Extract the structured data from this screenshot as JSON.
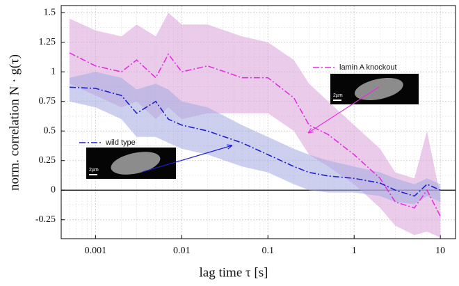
{
  "chart_data": {
    "type": "line",
    "ylabel": "norm. correlation N · g(τ)",
    "xlabel": "lag time τ [s]",
    "log_x": true,
    "grid": true,
    "x": [
      0.0005,
      0.001,
      0.002,
      0.003,
      0.005,
      0.007,
      0.01,
      0.02,
      0.05,
      0.1,
      0.2,
      0.3,
      0.5,
      1,
      2,
      3,
      5,
      7,
      10
    ],
    "series": [
      {
        "name": "lamin A knockout",
        "color": "#e62ee0",
        "band_color": "#d8a3d8",
        "values": [
          1.16,
          1.05,
          1.0,
          1.1,
          0.95,
          1.15,
          1.0,
          1.05,
          0.95,
          0.95,
          0.78,
          0.55,
          0.47,
          0.3,
          0.1,
          -0.1,
          -0.15,
          0.0,
          -0.22
        ],
        "band_high": [
          1.45,
          1.35,
          1.3,
          1.4,
          1.3,
          1.5,
          1.4,
          1.4,
          1.3,
          1.25,
          1.1,
          0.9,
          0.75,
          0.55,
          0.35,
          0.15,
          0.1,
          0.5,
          -0.05
        ],
        "band_low": [
          0.9,
          0.8,
          0.7,
          0.75,
          0.6,
          0.7,
          0.6,
          0.65,
          0.65,
          0.65,
          0.5,
          0.3,
          0.2,
          0.05,
          -0.15,
          -0.3,
          -0.38,
          -0.35,
          -0.4
        ]
      },
      {
        "name": "wild type",
        "color": "#1f1fcf",
        "band_color": "#a3aae0",
        "values": [
          0.87,
          0.86,
          0.8,
          0.65,
          0.75,
          0.6,
          0.55,
          0.5,
          0.4,
          0.3,
          0.2,
          0.15,
          0.12,
          0.1,
          0.06,
          0.0,
          -0.05,
          0.05,
          0.0
        ],
        "band_high": [
          0.95,
          1.0,
          0.95,
          0.85,
          0.9,
          0.85,
          0.75,
          0.7,
          0.55,
          0.45,
          0.35,
          0.3,
          0.25,
          0.2,
          0.15,
          0.1,
          0.05,
          0.1,
          0.05
        ],
        "band_low": [
          0.75,
          0.7,
          0.6,
          0.45,
          0.45,
          0.4,
          0.35,
          0.3,
          0.2,
          0.15,
          0.05,
          0.0,
          -0.02,
          -0.02,
          -0.05,
          -0.1,
          -0.12,
          -0.05,
          -0.1
        ]
      }
    ],
    "inset_scale_labels": [
      "2µm",
      "2µm"
    ],
    "xlim": [
      0.0004,
      15
    ],
    "ylim": [
      -0.41,
      1.56
    ],
    "xticks": [
      0.001,
      0.01,
      0.1,
      1,
      10
    ],
    "yticks": [
      -0.25,
      0,
      0.25,
      0.5,
      0.75,
      1,
      1.25,
      1.5
    ]
  }
}
